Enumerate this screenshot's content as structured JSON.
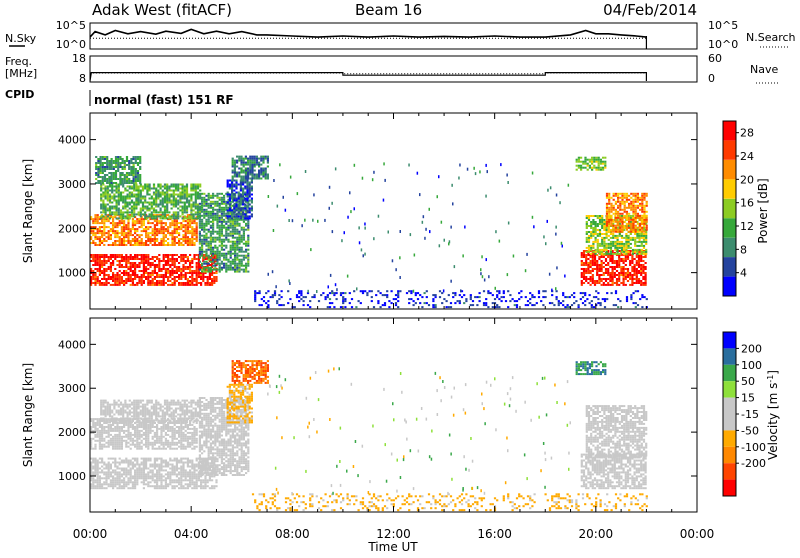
{
  "header": {
    "station": "Adak West (fitACF)",
    "beam": "Beam 16",
    "date": "04/Feb/2014"
  },
  "noise_panel": {
    "left_label": "N.Sky",
    "right_label": "N.Search",
    "left_ticks": [
      "10^5",
      "10^0"
    ],
    "right_ticks": [
      "10^5",
      "10^0"
    ]
  },
  "freq_panel": {
    "left_label_line1": "Freq.",
    "left_label_line2": "[MHz]",
    "right_label": "Nave",
    "left_ticks": [
      "18",
      "8"
    ],
    "right_ticks": [
      "60",
      "0"
    ]
  },
  "cpid_panel": {
    "label": "CPID",
    "text": "normal (fast) 151 RF"
  },
  "colors": {
    "power_scale": [
      "#0000ff",
      "#24439e",
      "#3c8c6e",
      "#36a83a",
      "#8ccc22",
      "#ffcc00",
      "#ff8c00",
      "#ff3a00",
      "#ff0000"
    ],
    "velocity_scale": [
      "#ff0000",
      "#ff4400",
      "#ff8800",
      "#ffaa00",
      "#c8c8c8",
      "#c8c8c8",
      "#8ee03a",
      "#3aa84a",
      "#2a6e9e",
      "#0000ff"
    ]
  },
  "chart_data": [
    {
      "type": "line",
      "title": "",
      "x_range_hours": [
        0,
        24
      ],
      "ylim": [
        0,
        1
      ],
      "series": [
        {
          "values": [
            [
              0.0,
              0.45
            ],
            [
              0.2,
              0.7
            ],
            [
              0.6,
              0.55
            ],
            [
              1.0,
              0.75
            ],
            [
              1.5,
              0.6
            ],
            [
              2.0,
              0.7
            ],
            [
              2.6,
              0.58
            ],
            [
              3.0,
              0.72
            ],
            [
              3.6,
              0.62
            ],
            [
              4.0,
              0.8
            ],
            [
              4.5,
              0.6
            ],
            [
              5.0,
              0.72
            ],
            [
              5.5,
              0.6
            ],
            [
              6.0,
              0.7
            ],
            [
              6.6,
              0.55
            ],
            [
              7.0,
              0.55
            ],
            [
              8.0,
              0.5
            ],
            [
              9.0,
              0.45
            ],
            [
              10.0,
              0.5
            ],
            [
              11.0,
              0.45
            ],
            [
              12.0,
              0.5
            ],
            [
              13.0,
              0.45
            ],
            [
              14.0,
              0.48
            ],
            [
              15.0,
              0.45
            ],
            [
              16.0,
              0.5
            ],
            [
              17.0,
              0.45
            ],
            [
              18.0,
              0.45
            ],
            [
              19.0,
              0.55
            ],
            [
              19.6,
              0.75
            ],
            [
              20.0,
              0.6
            ],
            [
              20.5,
              0.6
            ],
            [
              21.0,
              0.55
            ],
            [
              21.6,
              0.5
            ],
            [
              22.0,
              0.45
            ]
          ]
        },
        {
          "style": "dotted",
          "values": [
            [
              0.0,
              0.4
            ],
            [
              22.0,
              0.4
            ]
          ]
        }
      ]
    },
    {
      "type": "line",
      "x_range_hours": [
        0,
        24
      ],
      "y_left_range_mhz": [
        8,
        18
      ],
      "y_right_range": [
        0,
        60
      ],
      "series": [
        {
          "name": "Freq",
          "values": [
            [
              0.0,
              8
            ],
            [
              0.05,
              11.5
            ],
            [
              10.0,
              11.5
            ],
            [
              10.0,
              10.4
            ],
            [
              18.0,
              10.4
            ],
            [
              18.0,
              11.5
            ],
            [
              22.0,
              11.5
            ],
            [
              22.0,
              8
            ]
          ]
        },
        {
          "name": "Nave",
          "style": "dotted",
          "values": [
            [
              0.0,
              20
            ],
            [
              10.0,
              20
            ],
            [
              10.0,
              18
            ],
            [
              18.0,
              18
            ],
            [
              18.0,
              20
            ],
            [
              22.0,
              20
            ]
          ]
        }
      ]
    },
    {
      "type": "heatmap",
      "parameter": "Power",
      "xlabel": "",
      "ylabel": "Slant Range [km]",
      "x_ticks": [
        "00:00",
        "04:00",
        "08:00",
        "12:00",
        "16:00",
        "20:00",
        "00:00"
      ],
      "x_range_hours": [
        0,
        24
      ],
      "y_ticks": [
        1000,
        2000,
        3000,
        4000
      ],
      "y_range_km": [
        180,
        4600
      ],
      "colorbar": {
        "label": "Power [dB]",
        "ticks": [
          4,
          8,
          12,
          16,
          20,
          24,
          28
        ],
        "range": [
          0,
          30
        ]
      },
      "echo_regions": [
        {
          "t0": 0.0,
          "t1": 5.0,
          "r0": 700,
          "r1": 1400,
          "power": 27
        },
        {
          "t0": 0.0,
          "t1": 4.2,
          "r0": 1600,
          "r1": 2300,
          "power": 22
        },
        {
          "t0": 0.4,
          "t1": 4.4,
          "r0": 2200,
          "r1": 3000,
          "power": 12
        },
        {
          "t0": 4.3,
          "t1": 6.3,
          "r0": 1000,
          "r1": 2800,
          "power": 10
        },
        {
          "t0": 5.4,
          "t1": 6.4,
          "r0": 2200,
          "r1": 3100,
          "power": 5
        },
        {
          "t0": 5.6,
          "t1": 7.0,
          "r0": 3100,
          "r1": 3600,
          "power": 8
        },
        {
          "t0": 0.2,
          "t1": 2.0,
          "r0": 3000,
          "r1": 3600,
          "power": 10
        },
        {
          "t0": 19.4,
          "t1": 22.0,
          "r0": 700,
          "r1": 1500,
          "power": 27
        },
        {
          "t0": 19.6,
          "t1": 22.0,
          "r0": 1400,
          "r1": 2300,
          "power": 15
        },
        {
          "t0": 20.4,
          "t1": 22.0,
          "r0": 1900,
          "r1": 2800,
          "power": 22
        },
        {
          "t0": 19.2,
          "t1": 20.4,
          "r0": 3300,
          "r1": 3600,
          "power": 14
        },
        {
          "t0": 6.4,
          "t1": 22.0,
          "r0": 200,
          "r1": 600,
          "power": 3
        }
      ]
    },
    {
      "type": "heatmap",
      "parameter": "Velocity",
      "xlabel": "Time UT",
      "ylabel": "Slant Range [km]",
      "x_ticks": [
        "00:00",
        "04:00",
        "08:00",
        "12:00",
        "16:00",
        "20:00",
        "00:00"
      ],
      "x_range_hours": [
        0,
        24
      ],
      "y_ticks": [
        1000,
        2000,
        3000,
        4000
      ],
      "y_range_km": [
        180,
        4600
      ],
      "colorbar": {
        "label": "Velocity [m s",
        "label_sup": "-1",
        "label_close": "]",
        "ticks": [
          200,
          100,
          50,
          15,
          -15,
          -50,
          -100,
          -200
        ],
        "range": [
          -250,
          250
        ]
      },
      "echo_regions": [
        {
          "t0": 0.0,
          "t1": 5.0,
          "r0": 700,
          "r1": 1400,
          "velocity": -5
        },
        {
          "t0": 0.0,
          "t1": 4.2,
          "r0": 1600,
          "r1": 2300,
          "velocity": 0
        },
        {
          "t0": 0.4,
          "t1": 4.4,
          "r0": 2200,
          "r1": 2700,
          "velocity": -20
        },
        {
          "t0": 4.3,
          "t1": 6.3,
          "r0": 1000,
          "r1": 2800,
          "velocity": -10
        },
        {
          "t0": 5.4,
          "t1": 6.4,
          "r0": 2200,
          "r1": 3100,
          "velocity": -60
        },
        {
          "t0": 5.6,
          "t1": 7.0,
          "r0": 3100,
          "r1": 3600,
          "velocity": -150
        },
        {
          "t0": 19.4,
          "t1": 22.0,
          "r0": 700,
          "r1": 1500,
          "velocity": 5
        },
        {
          "t0": 19.6,
          "t1": 22.0,
          "r0": 1400,
          "r1": 2600,
          "velocity": 0
        },
        {
          "t0": 19.2,
          "t1": 20.4,
          "r0": 3300,
          "r1": 3600,
          "velocity": 150
        },
        {
          "t0": 6.4,
          "t1": 22.0,
          "r0": 200,
          "r1": 600,
          "velocity": -60
        }
      ]
    }
  ]
}
